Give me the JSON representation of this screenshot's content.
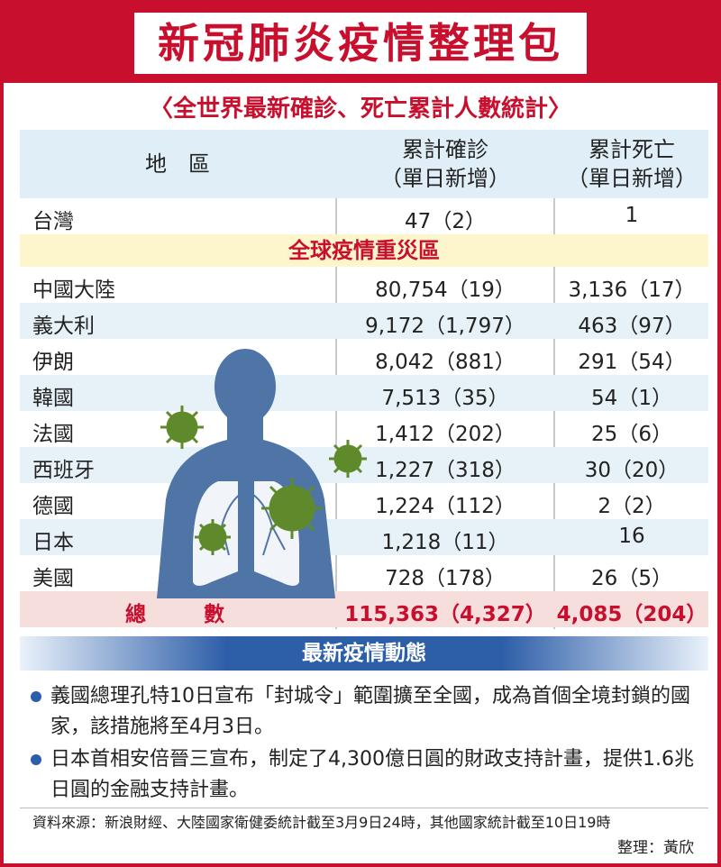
{
  "header": {
    "title": "新冠肺炎疫情整理包"
  },
  "subtitle": "〈全世界最新確診、死亡累計人數統計〉",
  "columns": {
    "region": "地　區",
    "confirmed_line1": "累計確診",
    "confirmed_line2": "（單日新增）",
    "deaths_line1": "累計死亡",
    "deaths_line2": "（單日新增）"
  },
  "taiwan": {
    "name": "台灣",
    "confirmed": "47（2）",
    "deaths": "1"
  },
  "zone_label": "全球疫情重災區",
  "rows": [
    {
      "name": "中國大陸",
      "confirmed": "80,754（19）",
      "deaths": "3,136（17）"
    },
    {
      "name": "義大利",
      "confirmed": "9,172（1,797）",
      "deaths": "463（97）"
    },
    {
      "name": "伊朗",
      "confirmed": "8,042（881）",
      "deaths": "291（54）"
    },
    {
      "name": "韓國",
      "confirmed": "7,513（35）",
      "deaths": "54（1）"
    },
    {
      "name": "法國",
      "confirmed": "1,412（202）",
      "deaths": "25（6）"
    },
    {
      "name": "西班牙",
      "confirmed": "1,227（318）",
      "deaths": "30（20）"
    },
    {
      "name": "德國",
      "confirmed": "1,224（112）",
      "deaths": "2（2）"
    },
    {
      "name": "日本",
      "confirmed": "1,218（11）",
      "deaths": "16"
    },
    {
      "name": "美國",
      "confirmed": "728（178）",
      "deaths": "26（5）"
    }
  ],
  "total": {
    "label": "總　　數",
    "confirmed": "115,363（4,327）",
    "deaths": "4,085（204）"
  },
  "news_title": "最新疫情動態",
  "news": [
    "義國總理孔特10日宣布「封城令」範圍擴至全國，成為首個全境封鎖的國家，該措施將至4月3日。",
    "日本首相安倍晉三宣布，制定了4,300億日圓的財政支持計畫，提供1.6兆日圓的金融支持計畫。"
  ],
  "source": "資料來源：新浪財經、大陸國家衛健委統計截至3月9日24時，其他國家統計截至10日19時",
  "editor": "整理：黃欣",
  "colors": {
    "brand_red": "#c8102e",
    "band_blue": "#2d5ea8",
    "stripe_blue": "#e6f1f8",
    "zone_yellow": "#fdf5cc",
    "total_pink": "#f6dedd"
  }
}
